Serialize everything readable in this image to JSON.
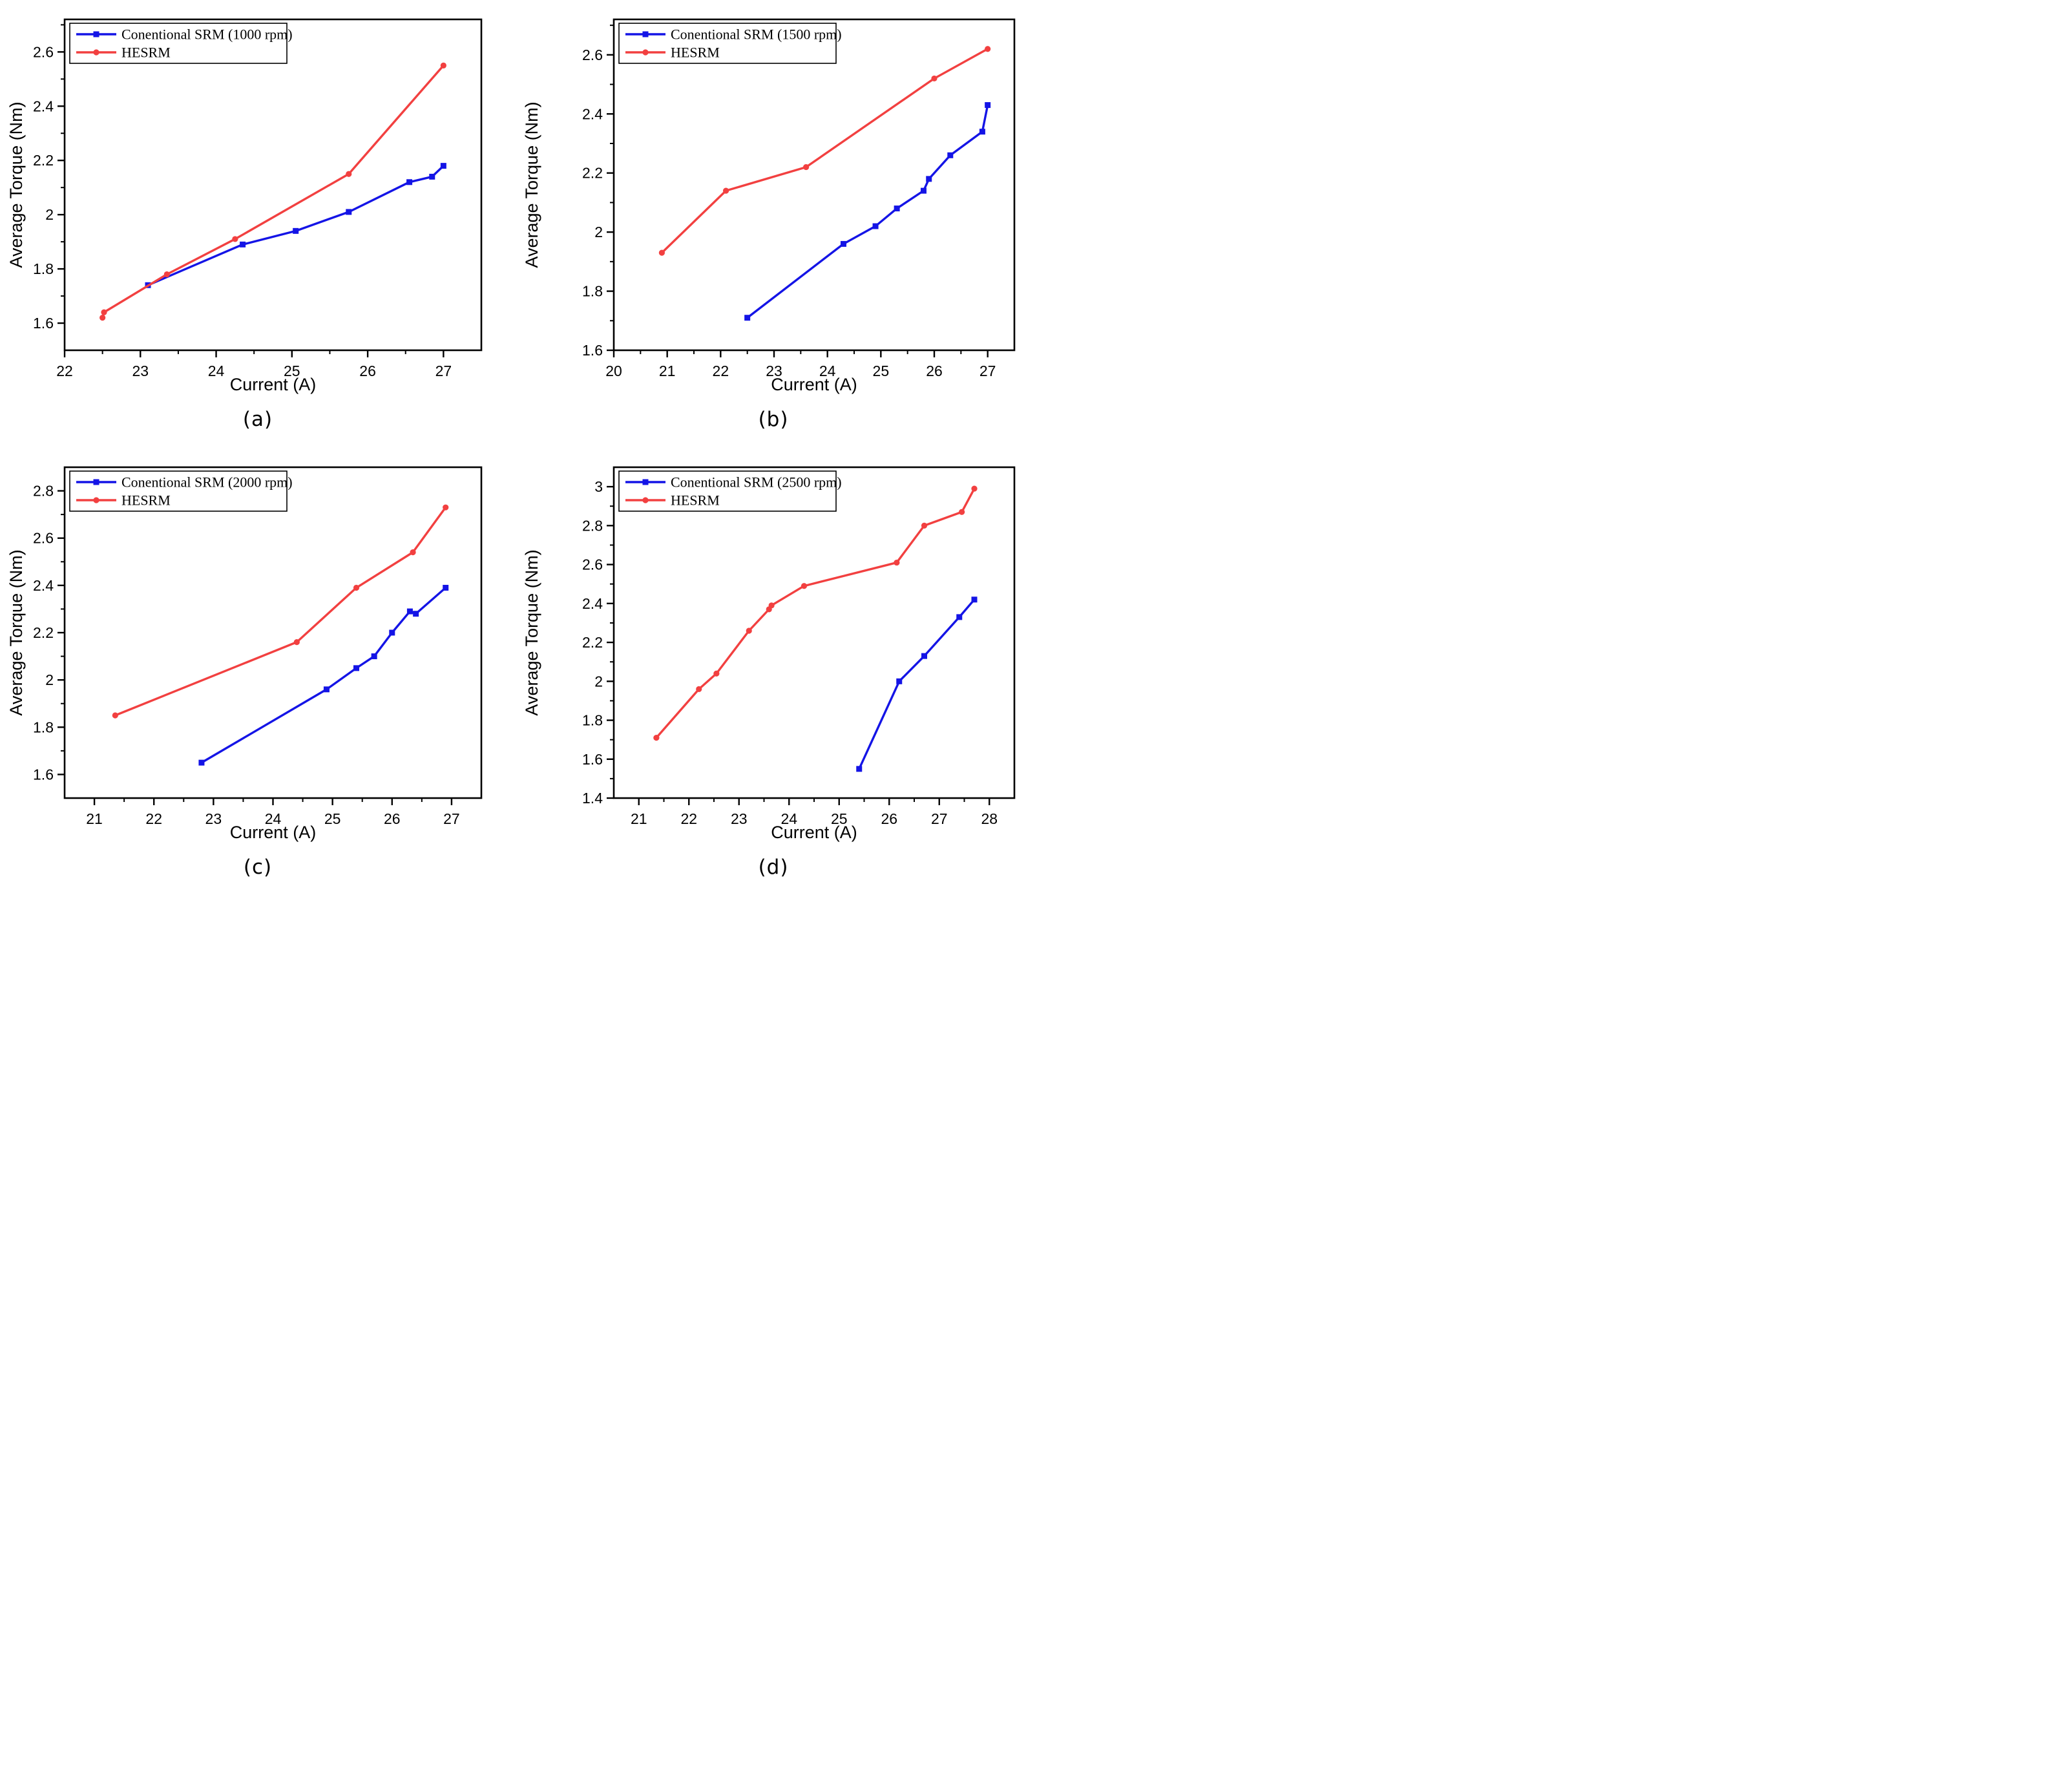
{
  "figure": {
    "background": "#ffffff",
    "colors": {
      "conventional_srm": "#1414e6",
      "hesrm": "#f24040",
      "axis": "#000000"
    }
  },
  "chart_data": [
    {
      "id": "a",
      "type": "line",
      "caption": "(a)",
      "xlabel": "Current (A)",
      "ylabel": "Average Torque (Nm)",
      "xlim": [
        22,
        27.5
      ],
      "ylim": [
        1.5,
        2.72
      ],
      "xticks": [
        22,
        23,
        24,
        25,
        26,
        27
      ],
      "yticks": [
        1.6,
        1.8,
        2.0,
        2.2,
        2.4,
        2.6
      ],
      "ytick_labels": [
        "1.6",
        "1.8",
        "2",
        "2.2",
        "2.4",
        "2.6"
      ],
      "grid": false,
      "legend_position": "top-left",
      "series": [
        {
          "name": "Conentional SRM (1000 rpm)",
          "color": "#1414e6",
          "marker": "square",
          "x": [
            23.1,
            24.35,
            25.05,
            25.75,
            26.55,
            26.85,
            27.0
          ],
          "y": [
            1.74,
            1.89,
            1.94,
            2.01,
            2.12,
            2.14,
            2.18
          ]
        },
        {
          "name": "HESRM",
          "color": "#f24040",
          "marker": "circle",
          "x": [
            22.5,
            22.52,
            23.35,
            24.25,
            25.75,
            27.0
          ],
          "y": [
            1.62,
            1.64,
            1.78,
            1.91,
            2.15,
            2.55
          ]
        }
      ]
    },
    {
      "id": "b",
      "type": "line",
      "caption": "(b)",
      "xlabel": "Current (A)",
      "ylabel": "Average Torque (Nm)",
      "xlim": [
        20,
        27.5
      ],
      "ylim": [
        1.6,
        2.72
      ],
      "xticks": [
        20,
        21,
        22,
        23,
        24,
        25,
        26,
        27
      ],
      "yticks": [
        1.6,
        1.8,
        2.0,
        2.2,
        2.4,
        2.6
      ],
      "ytick_labels": [
        "1.6",
        "1.8",
        "2",
        "2.2",
        "2.4",
        "2.6"
      ],
      "grid": false,
      "legend_position": "top-left",
      "series": [
        {
          "name": "Conentional SRM (1500 rpm)",
          "color": "#1414e6",
          "marker": "square",
          "x": [
            22.5,
            24.3,
            24.9,
            25.3,
            25.8,
            25.9,
            26.3,
            26.9,
            27.0
          ],
          "y": [
            1.71,
            1.96,
            2.02,
            2.08,
            2.14,
            2.18,
            2.26,
            2.34,
            2.43
          ]
        },
        {
          "name": "HESRM",
          "color": "#f24040",
          "marker": "circle",
          "x": [
            20.9,
            22.1,
            23.6,
            26.0,
            27.0
          ],
          "y": [
            1.93,
            2.14,
            2.22,
            2.52,
            2.62
          ]
        }
      ]
    },
    {
      "id": "c",
      "type": "line",
      "caption": "(c)",
      "xlabel": "Current (A)",
      "ylabel": "Average Torque (Nm)",
      "xlim": [
        20.5,
        27.5
      ],
      "ylim": [
        1.5,
        2.9
      ],
      "xticks": [
        21,
        22,
        23,
        24,
        25,
        26,
        27
      ],
      "yticks": [
        1.6,
        1.8,
        2.0,
        2.2,
        2.4,
        2.6,
        2.8
      ],
      "ytick_labels": [
        "1.6",
        "1.8",
        "2",
        "2.2",
        "2.4",
        "2.6",
        "2.8"
      ],
      "grid": false,
      "legend_position": "top-left",
      "series": [
        {
          "name": "Conentional SRM (2000 rpm)",
          "color": "#1414e6",
          "marker": "square",
          "x": [
            22.8,
            24.9,
            25.4,
            25.7,
            26.0,
            26.3,
            26.4,
            26.9
          ],
          "y": [
            1.65,
            1.96,
            2.05,
            2.1,
            2.2,
            2.29,
            2.28,
            2.39
          ]
        },
        {
          "name": "HESRM",
          "color": "#f24040",
          "marker": "circle",
          "x": [
            21.35,
            24.4,
            25.4,
            26.35,
            26.9
          ],
          "y": [
            1.85,
            2.16,
            2.39,
            2.54,
            2.73
          ]
        }
      ]
    },
    {
      "id": "d",
      "type": "line",
      "caption": "(d)",
      "xlabel": "Current (A)",
      "ylabel": "Average Torque (Nm)",
      "xlim": [
        20.5,
        28.5
      ],
      "ylim": [
        1.4,
        3.1
      ],
      "xticks": [
        21,
        22,
        23,
        24,
        25,
        26,
        27,
        28
      ],
      "yticks": [
        1.4,
        1.6,
        1.8,
        2.0,
        2.2,
        2.4,
        2.6,
        2.8,
        3.0
      ],
      "ytick_labels": [
        "1.4",
        "1.6",
        "1.8",
        "2",
        "2.2",
        "2.4",
        "2.6",
        "2.8",
        "3"
      ],
      "grid": false,
      "legend_position": "top-left",
      "series": [
        {
          "name": "Conentional SRM (2500 rpm)",
          "color": "#1414e6",
          "marker": "square",
          "x": [
            25.4,
            26.2,
            26.7,
            27.4,
            27.7
          ],
          "y": [
            1.55,
            2.0,
            2.13,
            2.33,
            2.42
          ]
        },
        {
          "name": "HESRM",
          "color": "#f24040",
          "marker": "circle",
          "x": [
            21.35,
            22.2,
            22.55,
            23.2,
            23.6,
            23.65,
            24.3,
            26.15,
            26.7,
            27.45,
            27.7
          ],
          "y": [
            1.71,
            1.96,
            2.04,
            2.26,
            2.37,
            2.39,
            2.49,
            2.61,
            2.8,
            2.87,
            2.99
          ]
        }
      ]
    }
  ]
}
